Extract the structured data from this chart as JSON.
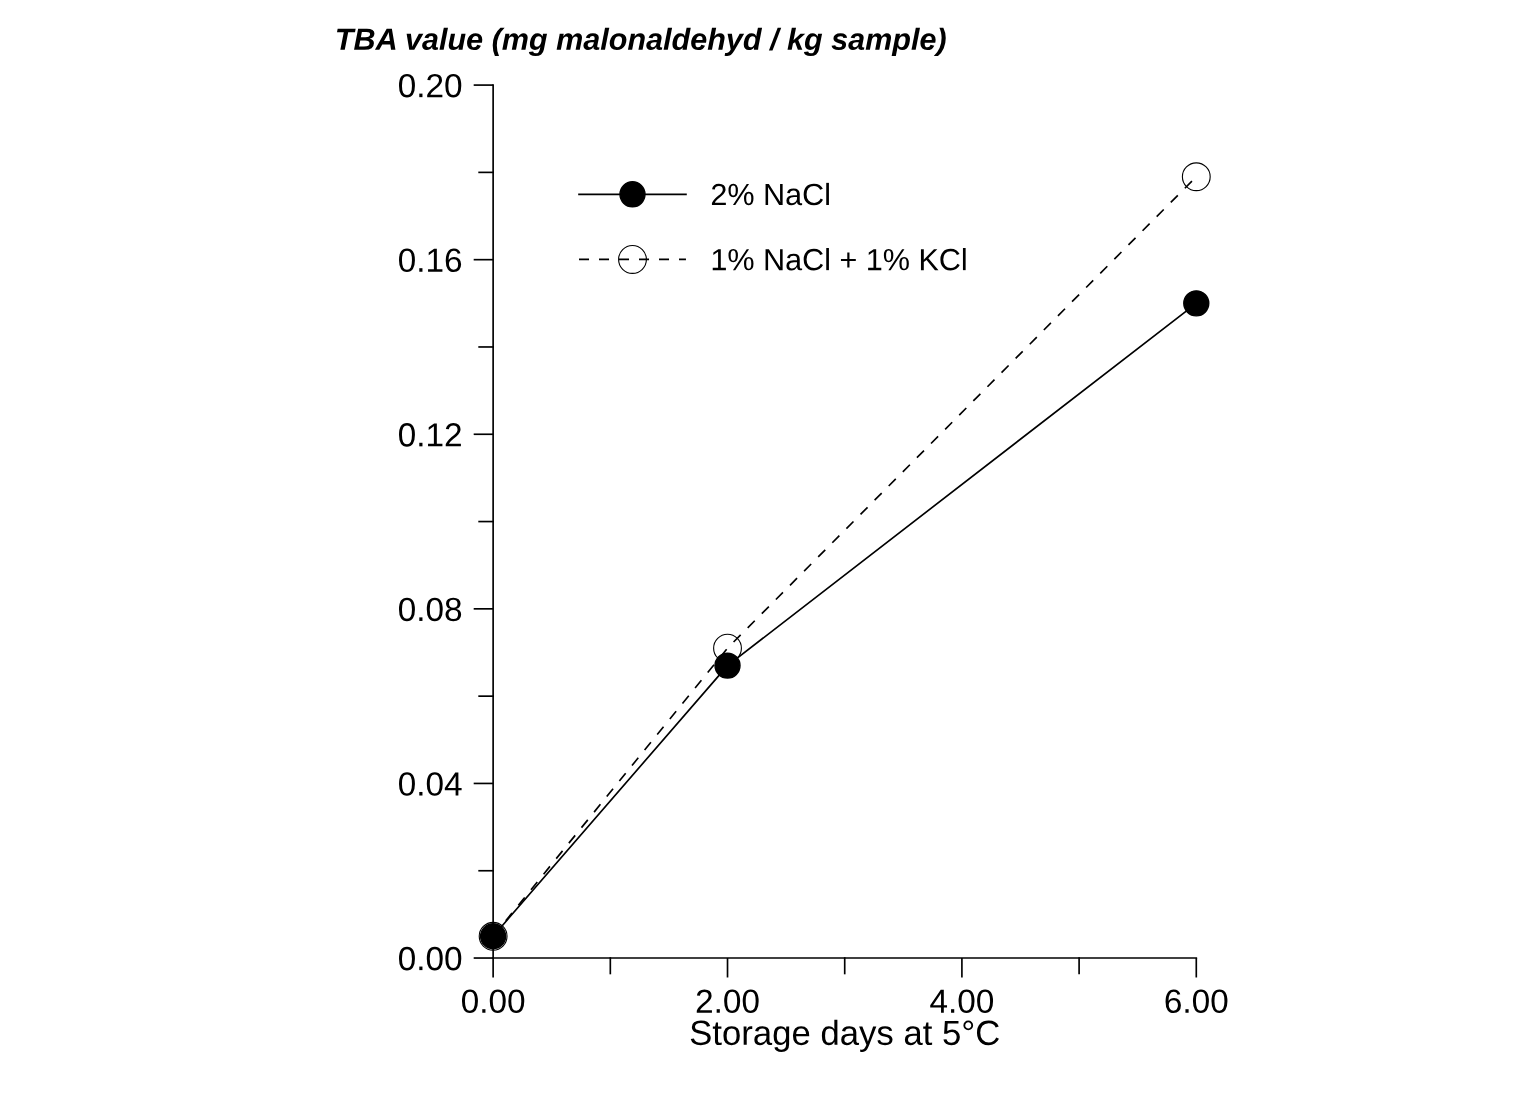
{
  "chart_data": {
    "type": "line",
    "ylabel": "TBA value (mg malonaldehyd / kg sample)",
    "xlabel": "Storage days at 5°C",
    "x": [
      0,
      2,
      6
    ],
    "series": [
      {
        "name": "2% NaCl",
        "color": "#000000",
        "values": [
          0.005,
          0.067,
          0.15
        ],
        "marker": "circle",
        "line_style": "solid"
      },
      {
        "name": "1% NaCl + 1% KCl",
        "color": "#000000",
        "values": [
          0.005,
          0.071,
          0.179
        ],
        "marker": "circle",
        "line_style": "dashed"
      }
    ],
    "xlim": [
      0,
      6
    ],
    "ylim": [
      0,
      0.2
    ],
    "xticks": [
      {
        "value": 0,
        "label": "0.00"
      },
      {
        "value": 1,
        "label": null
      },
      {
        "value": 2,
        "label": "2.00"
      },
      {
        "value": 3,
        "label": null
      },
      {
        "value": 4,
        "label": "4.00"
      },
      {
        "value": 5,
        "label": null
      },
      {
        "value": 6,
        "label": "6.00"
      }
    ],
    "yticks": [
      {
        "value": 0,
        "label": "0.00"
      },
      {
        "value": 0.02,
        "label": null
      },
      {
        "value": 0.04,
        "label": "0.04"
      },
      {
        "value": 0.06,
        "label": null
      },
      {
        "value": 0.08,
        "label": "0.08"
      },
      {
        "value": 0.1,
        "label": null
      },
      {
        "value": 0.12,
        "label": "0.12"
      },
      {
        "value": 0.14,
        "label": null
      },
      {
        "value": 0.16,
        "label": "0.16"
      },
      {
        "value": 0.18,
        "label": null
      },
      {
        "value": 0.2,
        "label": "0.20"
      }
    ],
    "grid": false,
    "legend": "top left"
  }
}
